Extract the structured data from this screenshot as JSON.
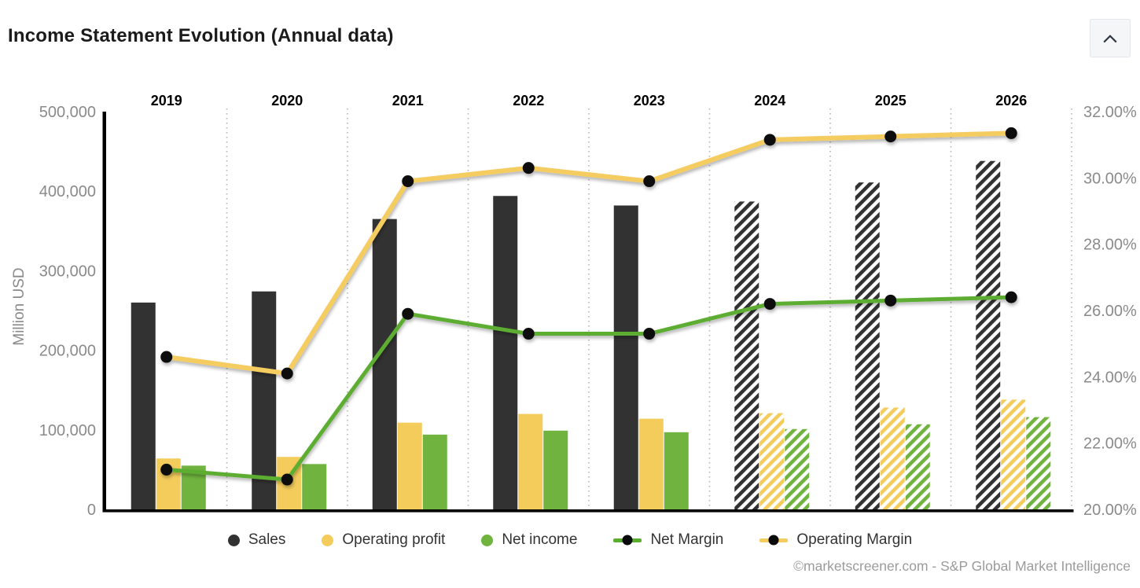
{
  "header": {
    "title": "Income Statement Evolution (Annual data)",
    "collapse_icon": "chevron-up"
  },
  "chart_data": {
    "type": "bar",
    "subtype": "grouped bars with two percentage lines on secondary axis",
    "categories": [
      "2019",
      "2020",
      "2021",
      "2022",
      "2023",
      "2024",
      "2025",
      "2026"
    ],
    "estimate_years": [
      "2024",
      "2025",
      "2026"
    ],
    "estimate_style": "hatched",
    "left_axis": {
      "label": "Million USD",
      "min": 0,
      "max": 500000,
      "tick_values": [
        0,
        100000,
        200000,
        300000,
        400000,
        500000
      ],
      "tick_labels": [
        "0",
        "100,000",
        "200,000",
        "300,000",
        "400,000",
        "500,000"
      ]
    },
    "right_axis": {
      "min": 20,
      "max": 32,
      "tick_values": [
        20,
        22,
        24,
        26,
        28,
        30,
        32
      ],
      "tick_labels": [
        "20.00%",
        "22.00%",
        "24.00%",
        "26.00%",
        "28.00%",
        "30.00%",
        "32.00%"
      ]
    },
    "grid": "dotted vertical separators between year groups",
    "legend_position": "bottom",
    "series": [
      {
        "name": "Sales",
        "type": "bar",
        "axis": "left",
        "color": "#323232",
        "values": [
          260000,
          274000,
          365000,
          394000,
          382000,
          387000,
          411000,
          438000
        ]
      },
      {
        "name": "Operating profit",
        "type": "bar",
        "axis": "left",
        "color": "#F4CC5C",
        "values": [
          64000,
          66000,
          109000,
          120000,
          114000,
          121000,
          128000,
          138000
        ]
      },
      {
        "name": "Net income",
        "type": "bar",
        "axis": "left",
        "color": "#70B33E",
        "values": [
          55000,
          57000,
          94000,
          99000,
          97000,
          101000,
          107000,
          116000
        ]
      },
      {
        "name": "Net Margin",
        "type": "line",
        "axis": "right",
        "color": "#5BAD30",
        "marker_color": "#0a0a0a",
        "values": [
          21.2,
          20.9,
          25.9,
          25.3,
          25.3,
          26.2,
          26.3,
          26.4
        ]
      },
      {
        "name": "Operating Margin",
        "type": "line",
        "axis": "right",
        "color": "#F4CC5F",
        "marker_color": "#0a0a0a",
        "values": [
          24.6,
          24.1,
          29.9,
          30.3,
          29.9,
          31.15,
          31.25,
          31.35
        ]
      }
    ]
  },
  "legend": {
    "items": [
      {
        "label": "Sales",
        "marker": "dot",
        "series_index": 0
      },
      {
        "label": "Operating profit",
        "marker": "dot",
        "series_index": 1
      },
      {
        "label": "Net income",
        "marker": "dot",
        "series_index": 2
      },
      {
        "label": "Net Margin",
        "marker": "line-dot",
        "series_index": 3
      },
      {
        "label": "Operating Margin",
        "marker": "line-dot",
        "series_index": 4
      }
    ]
  },
  "footer": {
    "attribution": "©marketscreener.com - S&P Global Market Intelligence"
  }
}
